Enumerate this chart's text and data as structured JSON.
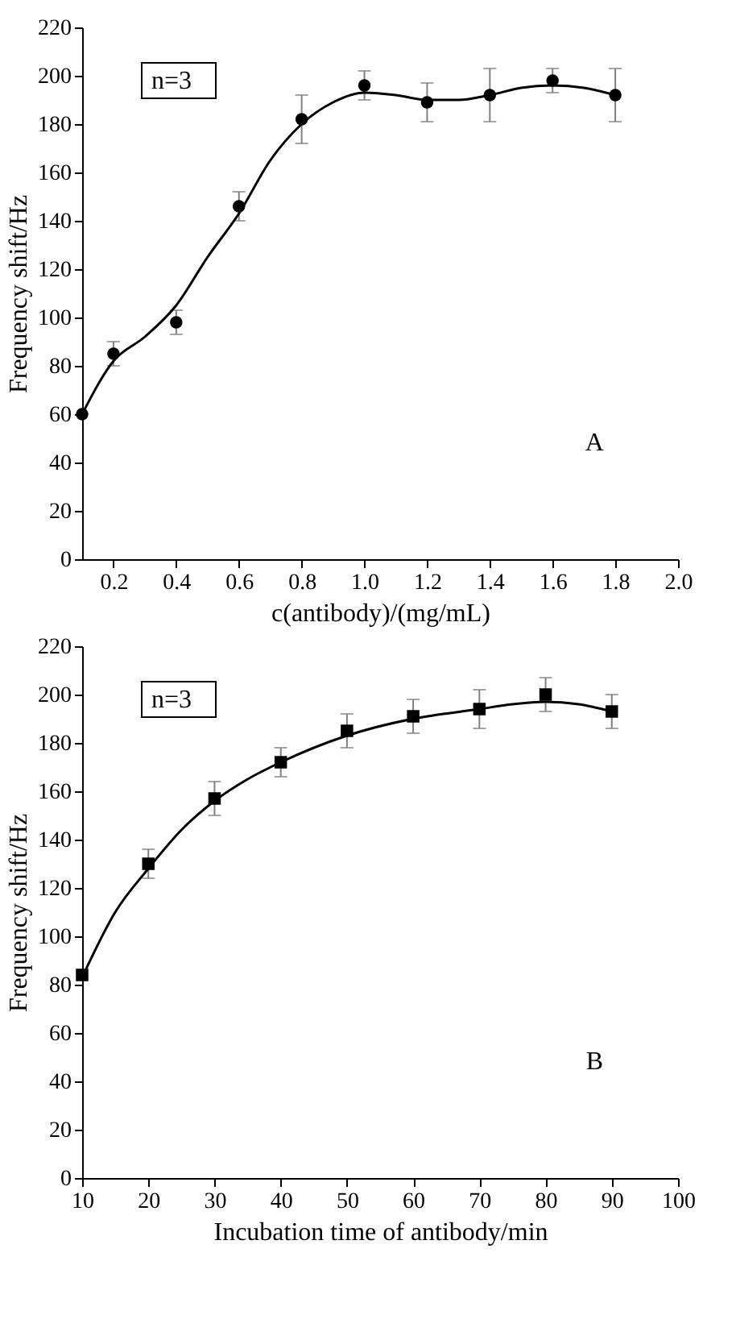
{
  "chart_data": [
    {
      "type": "scatter",
      "xlabel": "c(antibody)/(mg/mL)",
      "ylabel": "Frequency shift/Hz",
      "annotations": [
        "n=3",
        "A"
      ],
      "xlim": [
        0.1,
        2.0
      ],
      "xticks": [
        {
          "value": 0.2,
          "label": "0.2"
        },
        {
          "value": 0.4,
          "label": "0.4"
        },
        {
          "value": 0.6,
          "label": "0.6"
        },
        {
          "value": 0.8,
          "label": "0.8"
        },
        {
          "value": 1,
          "label": "1.0"
        },
        {
          "value": 1.2,
          "label": "1.2"
        },
        {
          "value": 1.4,
          "label": "1.4"
        },
        {
          "value": 1.6,
          "label": "1.6"
        },
        {
          "value": 1.8,
          "label": "1.8"
        },
        {
          "value": 2,
          "label": "2.0"
        }
      ],
      "ylim": [
        0,
        220
      ],
      "yticks": [
        0,
        20,
        40,
        60,
        80,
        100,
        120,
        140,
        160,
        180,
        200,
        220
      ],
      "grid": false,
      "series": [
        {
          "type": "scatter",
          "marker": "circle",
          "color": "#000000",
          "x": [
            0.1,
            0.2,
            0.4,
            0.6,
            0.8,
            1.0,
            1.2,
            1.4,
            1.6,
            1.8
          ],
          "values": [
            60,
            85,
            98,
            146,
            182,
            196,
            189,
            192,
            198,
            192
          ],
          "errors": [
            null,
            5,
            5,
            6,
            10,
            6,
            8,
            11,
            5,
            11
          ]
        },
        {
          "type": "line",
          "color": "#000000",
          "x": [
            0.1,
            0.2,
            0.3,
            0.4,
            0.5,
            0.6,
            0.7,
            0.8,
            0.9,
            1.0,
            1.1,
            1.2,
            1.3,
            1.4,
            1.5,
            1.6,
            1.7,
            1.8
          ],
          "values": [
            60,
            82,
            92,
            105,
            125,
            143,
            165,
            180,
            189,
            193,
            192,
            190,
            190,
            192,
            195,
            196,
            195,
            192
          ]
        }
      ]
    },
    {
      "type": "scatter",
      "xlabel": "Incubation time of antibody/min",
      "ylabel": "Frequency shift/Hz",
      "annotations": [
        "n=3",
        "B"
      ],
      "xlim": [
        10,
        100
      ],
      "xticks": [
        10,
        20,
        30,
        40,
        50,
        60,
        70,
        80,
        90,
        100
      ],
      "ylim": [
        0,
        220
      ],
      "yticks": [
        0,
        20,
        40,
        60,
        80,
        100,
        120,
        140,
        160,
        180,
        200,
        220
      ],
      "grid": false,
      "series": [
        {
          "type": "scatter",
          "marker": "square",
          "color": "#000000",
          "x": [
            10,
            20,
            30,
            40,
            50,
            60,
            70,
            80,
            90
          ],
          "values": [
            84,
            130,
            157,
            172,
            185,
            191,
            194,
            200,
            193
          ],
          "errors": [
            null,
            6,
            7,
            6,
            7,
            7,
            8,
            7,
            7
          ]
        },
        {
          "type": "line",
          "color": "#000000",
          "x": [
            10,
            15,
            20,
            25,
            30,
            35,
            40,
            50,
            60,
            70,
            75,
            80,
            85,
            90
          ],
          "values": [
            83,
            110,
            128,
            144,
            156,
            165,
            172,
            183,
            190,
            194,
            196,
            197,
            196,
            193
          ]
        }
      ]
    }
  ]
}
